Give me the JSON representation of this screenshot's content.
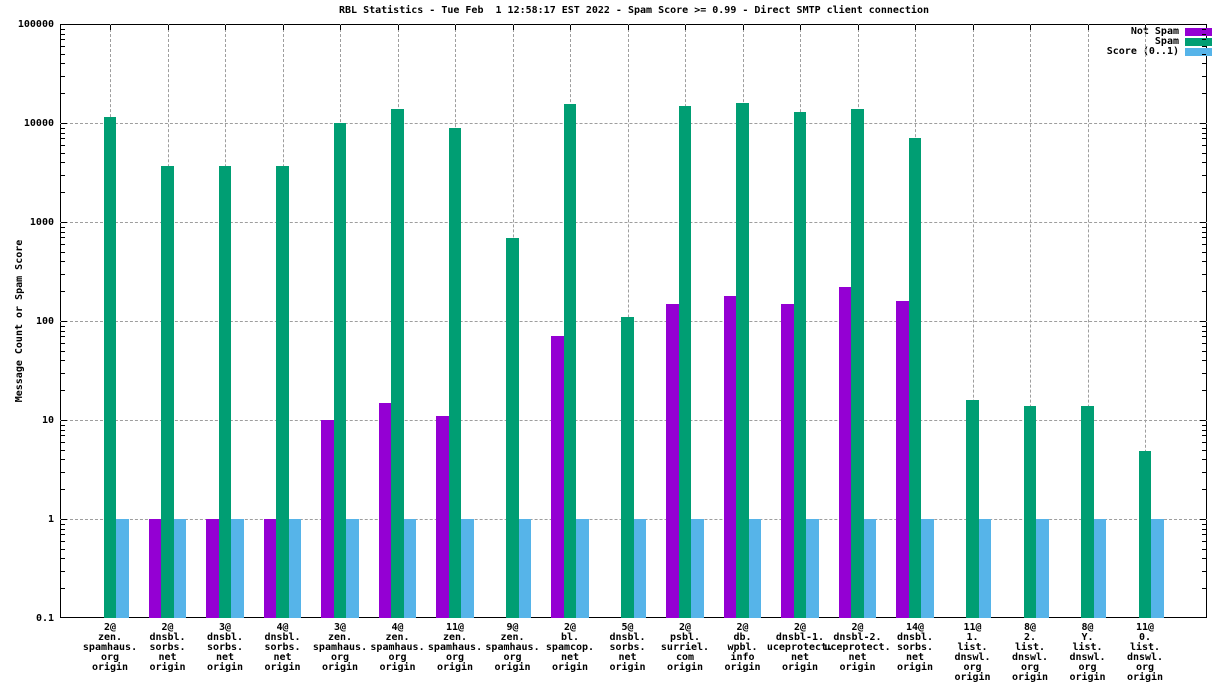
{
  "chart_data": {
    "type": "bar",
    "title": "RBL Statistics - Tue Feb  1 12:58:17 EST 2022 - Spam Score >= 0.99 - Direct SMTP client connection",
    "ylabel": "Message Count or Spam Score",
    "yscale": "log",
    "ylim": [
      0.1,
      100000
    ],
    "grid": true,
    "legend_position": "top-right",
    "y_ticks": [
      {
        "label": "100000",
        "value": 100000
      },
      {
        "label": "10000",
        "value": 10000
      },
      {
        "label": "1000",
        "value": 1000
      },
      {
        "label": "100",
        "value": 100
      },
      {
        "label": "10",
        "value": 10
      },
      {
        "label": "1",
        "value": 1
      },
      {
        "label": "0.1",
        "value": 0.1
      }
    ],
    "categories": [
      "2@zen.spamhaus.org origin",
      "2@dnsbl.sorbs.net origin",
      "3@dnsbl.sorbs.net origin",
      "4@dnsbl.sorbs.net origin",
      "3@zen.spamhaus.org origin",
      "4@zen.spamhaus.org origin",
      "11@zen.spamhaus.org origin",
      "9@zen.spamhaus.org origin",
      "2@bl.spamcop.net origin",
      "5@dnsbl.sorbs.net origin",
      "2@psbl.surriel.com origin",
      "2@db.wpbl.info origin",
      "2@dnsbl-1.uceprotect.net origin",
      "2@dnsbl-2.uceprotect.net origin",
      "14@dnsbl.sorbs.net origin",
      "11@1.list.dnswl.org origin",
      "8@2.list.dnswl.org origin",
      "8@Y.list.dnswl.org origin",
      "11@0.list.dnswl.org origin"
    ],
    "category_lines": [
      [
        "2@",
        "zen.",
        "spamhaus.",
        "org",
        "origin"
      ],
      [
        "2@",
        "dnsbl.",
        "sorbs.",
        "net",
        "origin"
      ],
      [
        "3@",
        "dnsbl.",
        "sorbs.",
        "net",
        "origin"
      ],
      [
        "4@",
        "dnsbl.",
        "sorbs.",
        "net",
        "origin"
      ],
      [
        "3@",
        "zen.",
        "spamhaus.",
        "org",
        "origin"
      ],
      [
        "4@",
        "zen.",
        "spamhaus.",
        "org",
        "origin"
      ],
      [
        "11@",
        "zen.",
        "spamhaus.",
        "org",
        "origin"
      ],
      [
        "9@",
        "zen.",
        "spamhaus.",
        "org",
        "origin"
      ],
      [
        "2@",
        "bl.",
        "spamcop.",
        "net",
        "origin"
      ],
      [
        "5@",
        "dnsbl.",
        "sorbs.",
        "net",
        "origin"
      ],
      [
        "2@",
        "psbl.",
        "surriel.",
        "com",
        "origin"
      ],
      [
        "2@",
        "db.",
        "wpbl.",
        "info",
        "origin"
      ],
      [
        "2@",
        "dnsbl-1.",
        "uceprotect.",
        "net",
        "origin"
      ],
      [
        "2@",
        "dnsbl-2.",
        "uceprotect.",
        "net",
        "origin"
      ],
      [
        "14@",
        "dnsbl.",
        "sorbs.",
        "net",
        "origin"
      ],
      [
        "11@",
        "1.",
        "list.",
        "dnswl.",
        "org",
        "origin"
      ],
      [
        "8@",
        "2.",
        "list.",
        "dnswl.",
        "org",
        "origin"
      ],
      [
        "8@",
        "Y.",
        "list.",
        "dnswl.",
        "org",
        "origin"
      ],
      [
        "11@",
        "0.",
        "list.",
        "dnswl.",
        "org",
        "origin"
      ]
    ],
    "series": [
      {
        "name": "Not Spam",
        "color": "#9400D3",
        "values": [
          null,
          1,
          1,
          1,
          10,
          15,
          11,
          null,
          70,
          null,
          150,
          180,
          150,
          220,
          160,
          null,
          null,
          null,
          null
        ]
      },
      {
        "name": "Spam",
        "color": "#009E73",
        "values": [
          11500,
          3700,
          3700,
          3700,
          9900,
          14000,
          9000,
          690,
          15500,
          110,
          15000,
          16000,
          13000,
          14000,
          7000,
          16,
          14,
          14,
          4.9
        ]
      },
      {
        "name": "Score (0..1)",
        "color": "#56B4E9",
        "values": [
          0.99,
          0.99,
          0.99,
          0.99,
          0.99,
          0.99,
          0.99,
          0.99,
          0.99,
          0.99,
          0.99,
          0.99,
          0.99,
          0.99,
          0.99,
          0.99,
          0.99,
          0.99,
          0.99
        ]
      }
    ],
    "colors": {
      "grid": "#9e9e9e",
      "border": "#000000",
      "background": "#ffffff"
    }
  }
}
